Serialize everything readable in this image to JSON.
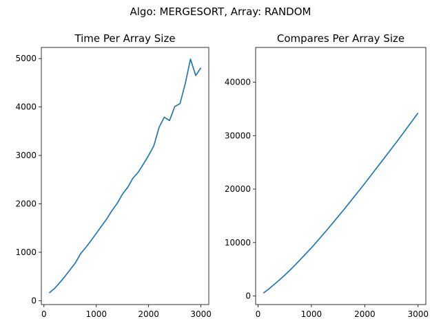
{
  "figure": {
    "suptitle": "Algo: MERGESORT, Array: RANDOM",
    "line_color": "#1f77b4"
  },
  "chart_data": [
    {
      "type": "line",
      "title": "Time Per Array Size",
      "xlabel": "",
      "ylabel": "",
      "xlim": [
        -50,
        3150
      ],
      "ylim": [
        -80,
        5230
      ],
      "xticks": [
        0,
        1000,
        2000,
        3000
      ],
      "yticks": [
        0,
        1000,
        2000,
        3000,
        4000,
        5000
      ],
      "grid": false,
      "series": [
        {
          "x": [
            100,
            200,
            300,
            400,
            500,
            600,
            700,
            800,
            900,
            1000,
            1100,
            1200,
            1300,
            1400,
            1500,
            1600,
            1700,
            1800,
            1900,
            2000,
            2100,
            2200,
            2300,
            2400,
            2500,
            2600,
            2700,
            2800,
            2900,
            3000
          ],
          "y": [
            160,
            250,
            370,
            500,
            640,
            780,
            970,
            1100,
            1240,
            1390,
            1540,
            1690,
            1860,
            2010,
            2200,
            2340,
            2530,
            2650,
            2820,
            3000,
            3200,
            3580,
            3790,
            3720,
            4010,
            4070,
            4480,
            4990,
            4650,
            4810
          ]
        }
      ]
    },
    {
      "type": "line",
      "title": "Compares Per Array Size",
      "xlabel": "",
      "ylabel": "",
      "xlim": [
        -45,
        3145
      ],
      "ylim": [
        -1600,
        46500
      ],
      "xticks": [
        0,
        1000,
        2000,
        3000
      ],
      "yticks": [
        0,
        10000,
        20000,
        30000,
        40000
      ],
      "grid": false,
      "series": [
        {
          "x": [
            100,
            200,
            300,
            400,
            500,
            600,
            700,
            800,
            900,
            1000,
            1100,
            1200,
            1300,
            1400,
            1500,
            1600,
            1700,
            1800,
            1900,
            2000,
            2100,
            2200,
            2300,
            2400,
            2500,
            2600,
            2700,
            2800,
            2900,
            3000
          ],
          "y": [
            540,
            1300,
            2150,
            3000,
            3900,
            4850,
            5850,
            6900,
            7950,
            9000,
            10150,
            11300,
            12450,
            13650,
            14850,
            16050,
            17300,
            18550,
            19800,
            21050,
            22350,
            23650,
            24950,
            26250,
            27550,
            28850,
            30200,
            31550,
            32900,
            34250
          ]
        }
      ]
    }
  ]
}
